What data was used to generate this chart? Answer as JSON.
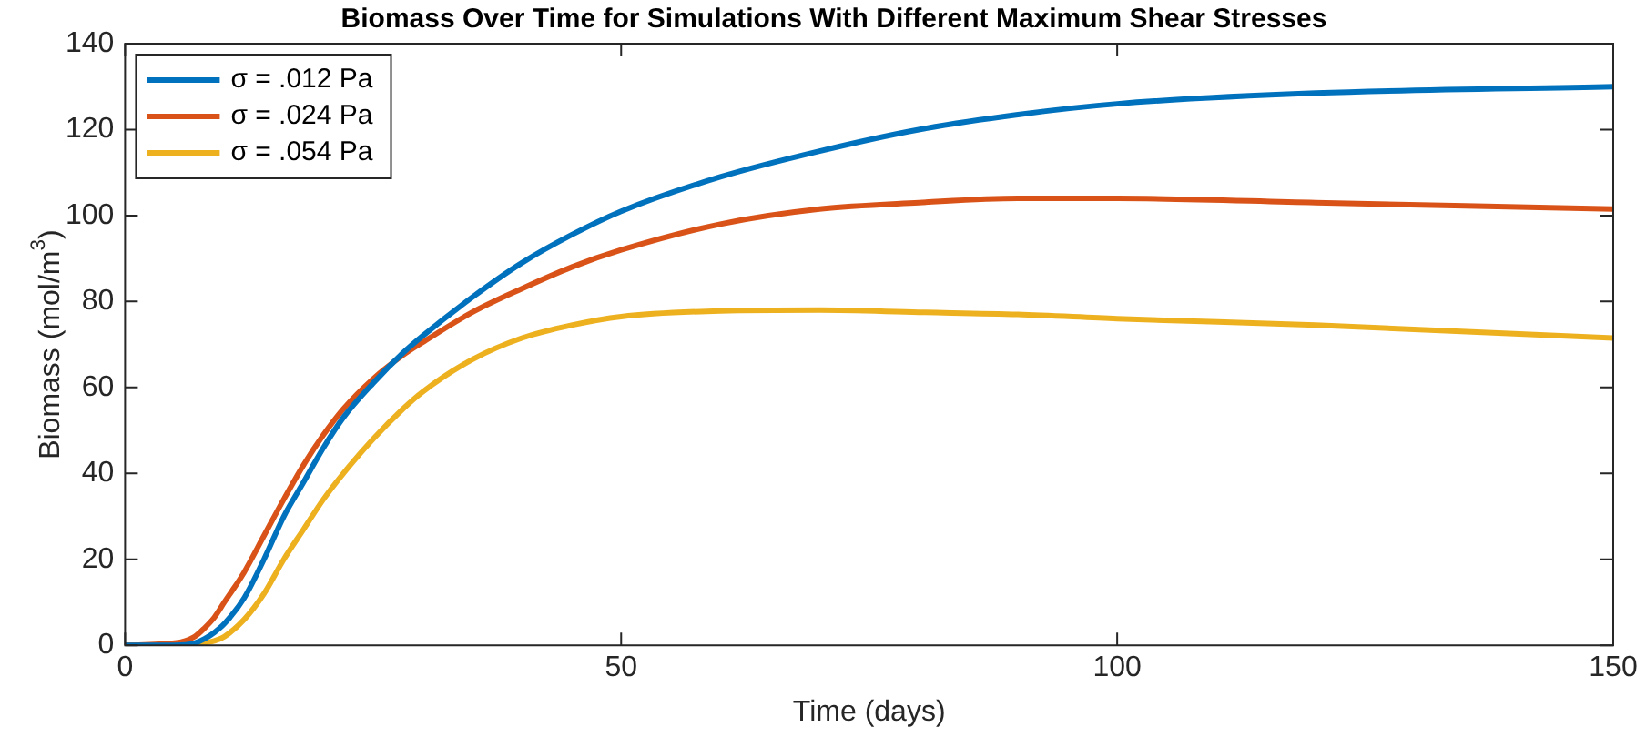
{
  "chart_data": {
    "type": "line",
    "title": "Biomass Over Time for Simulations With Different Maximum Shear Stresses",
    "xlabel": "Time (days)",
    "ylabel": "Biomass (mol/m$^{3}$)",
    "xlim": [
      0,
      150
    ],
    "xticks": [
      0,
      50,
      100,
      150
    ],
    "ylim": [
      0,
      140
    ],
    "yticks": [
      0,
      20,
      40,
      60,
      80,
      100,
      120,
      140
    ],
    "grid": false,
    "legend": "top left",
    "marker": "none",
    "line_style": "solid",
    "x": [
      0,
      5,
      7,
      8,
      9,
      10,
      12,
      14,
      16,
      18,
      20,
      22,
      25,
      28,
      30,
      35,
      40,
      45,
      50,
      60,
      70,
      80,
      90,
      100,
      120,
      150
    ],
    "series": [
      {
        "name": "σ = .012 Pa",
        "color": "#0072bd",
        "values": [
          0,
          0,
          0.5,
          1.5,
          3,
          5,
          11,
          20,
          30,
          38,
          46,
          53,
          61,
          68,
          72,
          81,
          89,
          95.5,
          101,
          109,
          115,
          120,
          123.5,
          126,
          128.5,
          130
        ]
      },
      {
        "name": "σ = .024 Pa",
        "color": "#d95319",
        "values": [
          0,
          0.5,
          2,
          4,
          6.5,
          10,
          17,
          25.5,
          34,
          42,
          49,
          55,
          62,
          67.5,
          70.5,
          77.5,
          83,
          88,
          92,
          98,
          101.5,
          103,
          104,
          104,
          103,
          101.5
        ]
      },
      {
        "name": "σ = .054 Pa",
        "color": "#edb120",
        "values": [
          0,
          0,
          0.2,
          0.5,
          1,
          2,
          6,
          12,
          20,
          27,
          34,
          40,
          48,
          55,
          59,
          66.5,
          71.5,
          74.5,
          76.5,
          77.8,
          78,
          77.5,
          77,
          76,
          74.5,
          71.5
        ]
      }
    ]
  }
}
